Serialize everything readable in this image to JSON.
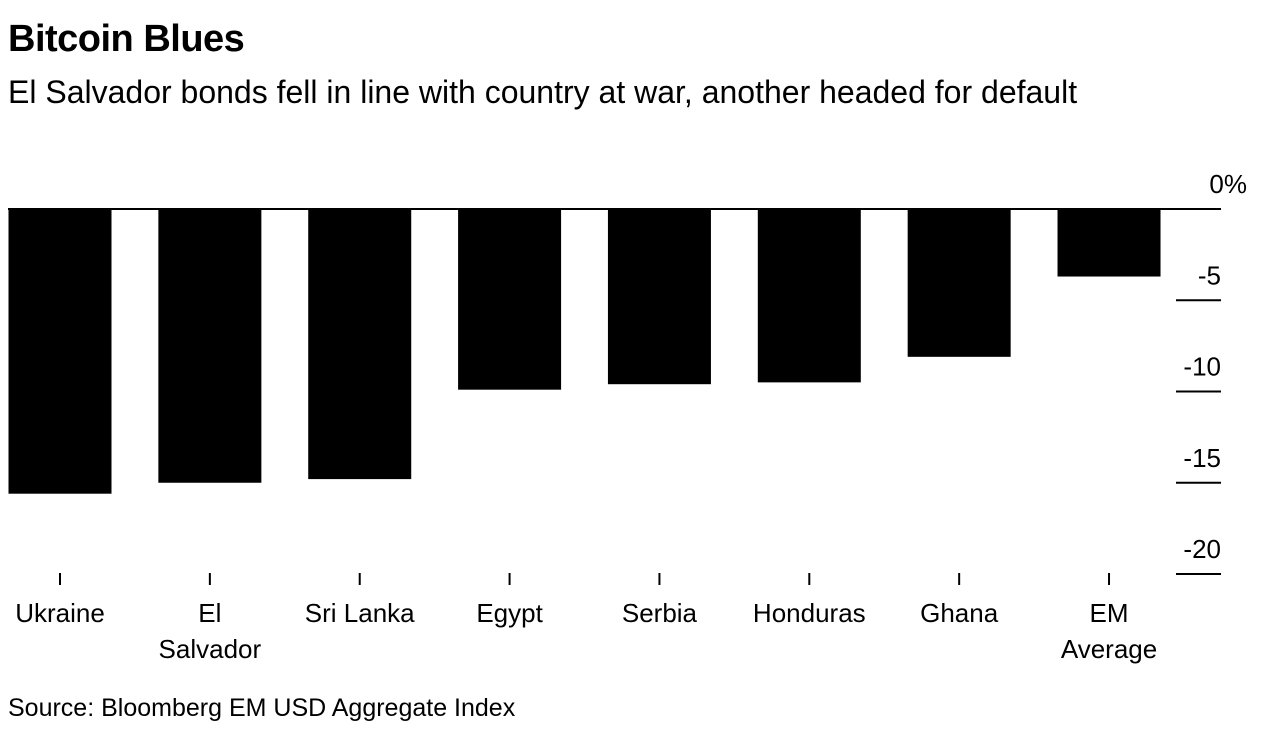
{
  "title": "Bitcoin Blues",
  "subtitle": "El Salvador bonds fell in line with country at war, another headed for default",
  "source": "Source: Bloomberg EM USD Aggregate Index",
  "colors": {
    "bar": "#000000",
    "axis": "#000000",
    "background": "#ffffff"
  },
  "chart_data": {
    "type": "bar",
    "categories": [
      [
        "Ukraine"
      ],
      [
        "El",
        "Salvador"
      ],
      [
        "Sri Lanka"
      ],
      [
        "Egypt"
      ],
      [
        "Serbia"
      ],
      [
        "Honduras"
      ],
      [
        "Ghana"
      ],
      [
        "EM",
        "Average"
      ]
    ],
    "values": [
      -15.6,
      -15.0,
      -14.8,
      -9.9,
      -9.6,
      -9.5,
      -8.1,
      -3.7
    ],
    "ylim": [
      -20,
      0
    ],
    "yticks": [
      0,
      -5,
      -10,
      -15,
      -20
    ],
    "ytick_labels": [
      "0%",
      "-5",
      "-10",
      "-15",
      "-20"
    ],
    "axis_side": "right",
    "grid": false
  }
}
